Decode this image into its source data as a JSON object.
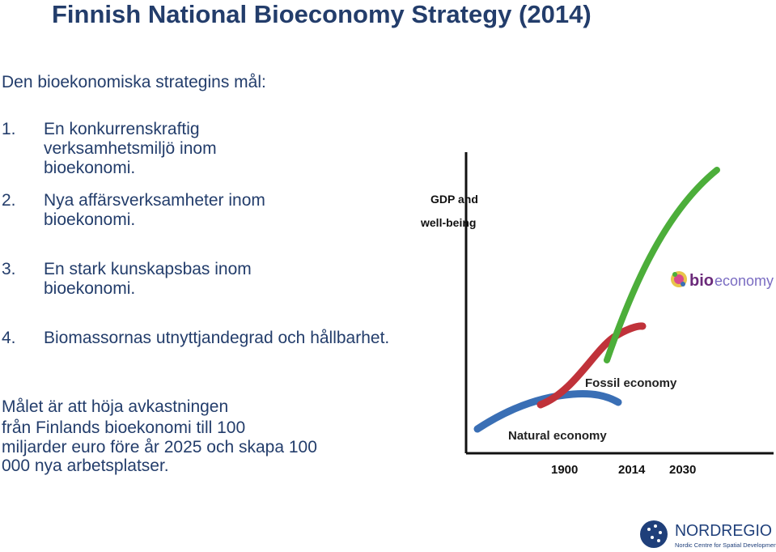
{
  "title": "Finnish  National Bioeconomy Strategy (2014)",
  "subtitle": "Den bioekonomiska strategins mål:",
  "goals": [
    {
      "num": "1.",
      "text": "En konkurrenskraftig verksamhetsmiljö inom bioekonomi."
    },
    {
      "num": "2.",
      "text": "Nya affärsverksamheter inom bioekonomi."
    },
    {
      "num": "3.",
      "text": "En stark kunskapsbas inom bioekonomi."
    },
    {
      "num": "4.",
      "text": "Biomassornas utnyttjandegrad och hållbarhet."
    }
  ],
  "summary": [
    "Målet är att höja avkastningen",
    "från  Finlands  bioekonomi till 100",
    "miljarder euro före år 2025 och skapa 100",
    "000 nya arbetsplatser."
  ],
  "chart": {
    "ylabel_1": "GDP and",
    "ylabel_2": "well-being",
    "x_ticks": [
      "1900",
      "2014",
      "2030"
    ],
    "labels": {
      "natural": "Natural economy",
      "fossil": "Fossil economy",
      "bio_1": "bio",
      "bio_2": "economy"
    },
    "colors": {
      "natural": "#3a6fb5",
      "fossil": "#c0323a",
      "bio": "#4cae3a",
      "axis": "#111111"
    }
  },
  "logo": {
    "name": "NORDREGIO",
    "tagline": "Nordic Centre for Spatial Development",
    "color": "#1f3f7a"
  }
}
